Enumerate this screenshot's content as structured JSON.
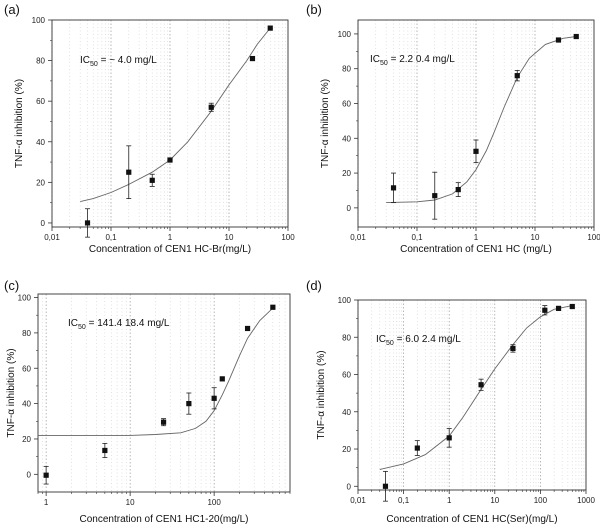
{
  "chart_data": [
    {
      "type": "scatter",
      "panel_label": "(a)",
      "annotation": {
        "prefix": "IC",
        "sub": "50",
        "suffix": " = ~ 4.0 mg/L"
      },
      "xlabel": "Concentration of CEN1 HC-Br(mg/L)",
      "ylabel": "TNF-α inhibition (%)",
      "xscale": "log",
      "xlim": [
        0.01,
        100
      ],
      "ylim": [
        -2,
        100
      ],
      "xticks": [
        0.01,
        0.1,
        1,
        10,
        100
      ],
      "xtick_labels": [
        "0,01",
        "0,1",
        "1",
        "10",
        "100"
      ],
      "yticks": [
        0,
        20,
        40,
        60,
        80,
        100
      ],
      "ytick_labels": [
        "0",
        "20",
        "40",
        "60",
        "80",
        "100"
      ],
      "points": [
        {
          "x": 0.04,
          "y": 0,
          "err": 7
        },
        {
          "x": 0.2,
          "y": 25,
          "err": 13
        },
        {
          "x": 0.5,
          "y": 21,
          "err": 3
        },
        {
          "x": 1,
          "y": 31,
          "err": 0
        },
        {
          "x": 5,
          "y": 57,
          "err": 2
        },
        {
          "x": 25,
          "y": 81,
          "err": 0
        },
        {
          "x": 50,
          "y": 96,
          "err": 0
        }
      ],
      "curve": [
        [
          0.03,
          10.5
        ],
        [
          0.05,
          12
        ],
        [
          0.1,
          15
        ],
        [
          0.2,
          19
        ],
        [
          0.5,
          25
        ],
        [
          1,
          31
        ],
        [
          2,
          40
        ],
        [
          5,
          55
        ],
        [
          10,
          68
        ],
        [
          20,
          80
        ],
        [
          30,
          88
        ],
        [
          50,
          96
        ]
      ]
    },
    {
      "type": "scatter",
      "panel_label": "(b)",
      "annotation": {
        "prefix": "IC",
        "sub": "50",
        "suffix": " = 2.2    0.4 mg/L"
      },
      "xlabel": "Concentration of CEN1 HC (mg/L)",
      "ylabel": "TNF-α inhibition (%)",
      "xscale": "log",
      "xlim": [
        0.01,
        100
      ],
      "ylim": [
        -11,
        108
      ],
      "xticks": [
        0.01,
        0.1,
        1,
        10,
        100
      ],
      "xtick_labels": [
        "0,01",
        "0,1",
        "1",
        "10",
        "100"
      ],
      "yticks": [
        0,
        20,
        40,
        60,
        80,
        100
      ],
      "ytick_labels": [
        "0",
        "20",
        "40",
        "60",
        "80",
        "100"
      ],
      "points": [
        {
          "x": 0.04,
          "y": 11.5,
          "err": 8.5
        },
        {
          "x": 0.2,
          "y": 7,
          "err": 13.5
        },
        {
          "x": 0.5,
          "y": 10.5,
          "err": 4
        },
        {
          "x": 1,
          "y": 32.5,
          "err": 6.5
        },
        {
          "x": 5,
          "y": 76,
          "err": 3
        },
        {
          "x": 25,
          "y": 96.5,
          "err": 1
        },
        {
          "x": 50,
          "y": 98.5,
          "err": 0
        }
      ],
      "curve": [
        [
          0.03,
          3
        ],
        [
          0.1,
          3.5
        ],
        [
          0.2,
          4.5
        ],
        [
          0.4,
          8
        ],
        [
          0.7,
          15
        ],
        [
          1,
          22
        ],
        [
          1.5,
          33
        ],
        [
          2,
          43
        ],
        [
          3,
          58
        ],
        [
          5,
          75
        ],
        [
          8,
          86
        ],
        [
          15,
          94
        ],
        [
          30,
          97.5
        ],
        [
          50,
          98.5
        ]
      ]
    },
    {
      "type": "scatter",
      "panel_label": "(c)",
      "annotation": {
        "prefix": "IC",
        "sub": "50",
        "suffix": " = 141.4    18.4 mg/L"
      },
      "xlabel": "Concentration of CEN1 HC1-20(mg/L)",
      "ylabel": "TNF-α inhibition (%)",
      "xscale": "log",
      "xlim": [
        0.8,
        800
      ],
      "ylim": [
        -10,
        102
      ],
      "xticks": [
        1,
        10,
        100
      ],
      "xtick_labels": [
        "1",
        "10",
        "100"
      ],
      "yticks": [
        0,
        20,
        40,
        60,
        80,
        100
      ],
      "ytick_labels": [
        "0",
        "20",
        "40",
        "60",
        "80",
        "100"
      ],
      "points": [
        {
          "x": 1,
          "y": -0.5,
          "err": 5
        },
        {
          "x": 5,
          "y": 13.5,
          "err": 4
        },
        {
          "x": 25,
          "y": 29.5,
          "err": 2
        },
        {
          "x": 50,
          "y": 40,
          "err": 6
        },
        {
          "x": 100,
          "y": 43,
          "err": 6
        },
        {
          "x": 125,
          "y": 54,
          "err": 0
        },
        {
          "x": 250,
          "y": 82.5,
          "err": 0
        },
        {
          "x": 500,
          "y": 94.5,
          "err": 0
        }
      ],
      "curve": [
        [
          0.8,
          22
        ],
        [
          10,
          22
        ],
        [
          20,
          22.5
        ],
        [
          40,
          23.5
        ],
        [
          60,
          26
        ],
        [
          80,
          30
        ],
        [
          100,
          36
        ],
        [
          125,
          45
        ],
        [
          150,
          53
        ],
        [
          200,
          67
        ],
        [
          250,
          77
        ],
        [
          350,
          87
        ],
        [
          500,
          94
        ]
      ]
    },
    {
      "type": "scatter",
      "panel_label": "(d)",
      "annotation": {
        "prefix": "IC",
        "sub": "50",
        "suffix": " = 6.0    2.4 mg/L"
      },
      "xlabel": "Concentration of CEN1 HC(Ser)(mg/L)",
      "ylabel": "TNF-α inhibition (%)",
      "xscale": "log",
      "xlim": [
        0.01,
        1000
      ],
      "ylim": [
        -2,
        100
      ],
      "xticks": [
        0.01,
        0.1,
        1,
        10,
        100,
        1000
      ],
      "xtick_labels": [
        "0,01",
        "0,1",
        "1",
        "10",
        "100",
        "1000"
      ],
      "yticks": [
        0,
        20,
        40,
        60,
        80,
        100
      ],
      "ytick_labels": [
        "0",
        "20",
        "40",
        "60",
        "80",
        "100"
      ],
      "points": [
        {
          "x": 0.04,
          "y": 0,
          "err": 8
        },
        {
          "x": 0.2,
          "y": 20.5,
          "err": 4
        },
        {
          "x": 1,
          "y": 26,
          "err": 5
        },
        {
          "x": 5,
          "y": 54.5,
          "err": 3
        },
        {
          "x": 25,
          "y": 74,
          "err": 2
        },
        {
          "x": 125,
          "y": 94.5,
          "err": 2.5
        },
        {
          "x": 250,
          "y": 95.5,
          "err": 1
        },
        {
          "x": 500,
          "y": 96.5,
          "err": 0
        }
      ],
      "curve": [
        [
          0.03,
          9
        ],
        [
          0.1,
          12
        ],
        [
          0.3,
          17
        ],
        [
          1,
          27
        ],
        [
          2,
          37
        ],
        [
          5,
          52
        ],
        [
          10,
          63
        ],
        [
          25,
          76
        ],
        [
          50,
          85
        ],
        [
          100,
          91
        ],
        [
          200,
          95
        ],
        [
          500,
          97
        ]
      ]
    }
  ]
}
